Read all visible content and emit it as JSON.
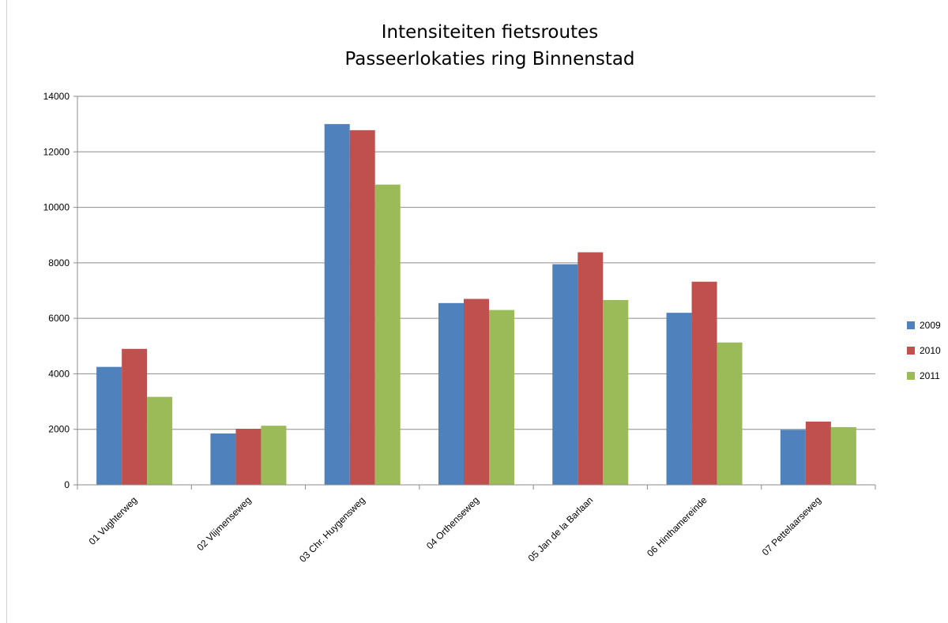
{
  "chart_data": {
    "type": "bar",
    "title_lines": [
      "Intensiteiten fietsroutes",
      "Passeerlokaties ring Binnenstad"
    ],
    "xlabel": "",
    "ylabel": "",
    "ylim": [
      0,
      14000
    ],
    "yticks": [
      0,
      2000,
      4000,
      6000,
      8000,
      10000,
      12000,
      14000
    ],
    "grid": true,
    "legend_position": "right",
    "categories": [
      "01 Vughterweg",
      "02 Vlijmenseweg",
      "03 Chr. Huygensweg",
      "04 Orthenseweg",
      "05 Jan de la Barlaan",
      "06 Hinthamereinde",
      "07 Pettelaarseweg"
    ],
    "series": [
      {
        "name": "2009",
        "color": "#4f81bd",
        "values": [
          4250,
          1850,
          13000,
          6550,
          7950,
          6200,
          1980
        ]
      },
      {
        "name": "2010",
        "color": "#c0504d",
        "values": [
          4900,
          2020,
          12780,
          6700,
          8380,
          7320,
          2280
        ]
      },
      {
        "name": "2011",
        "color": "#9bbb59",
        "values": [
          3170,
          2130,
          10820,
          6300,
          6660,
          5130,
          2080
        ]
      }
    ]
  }
}
